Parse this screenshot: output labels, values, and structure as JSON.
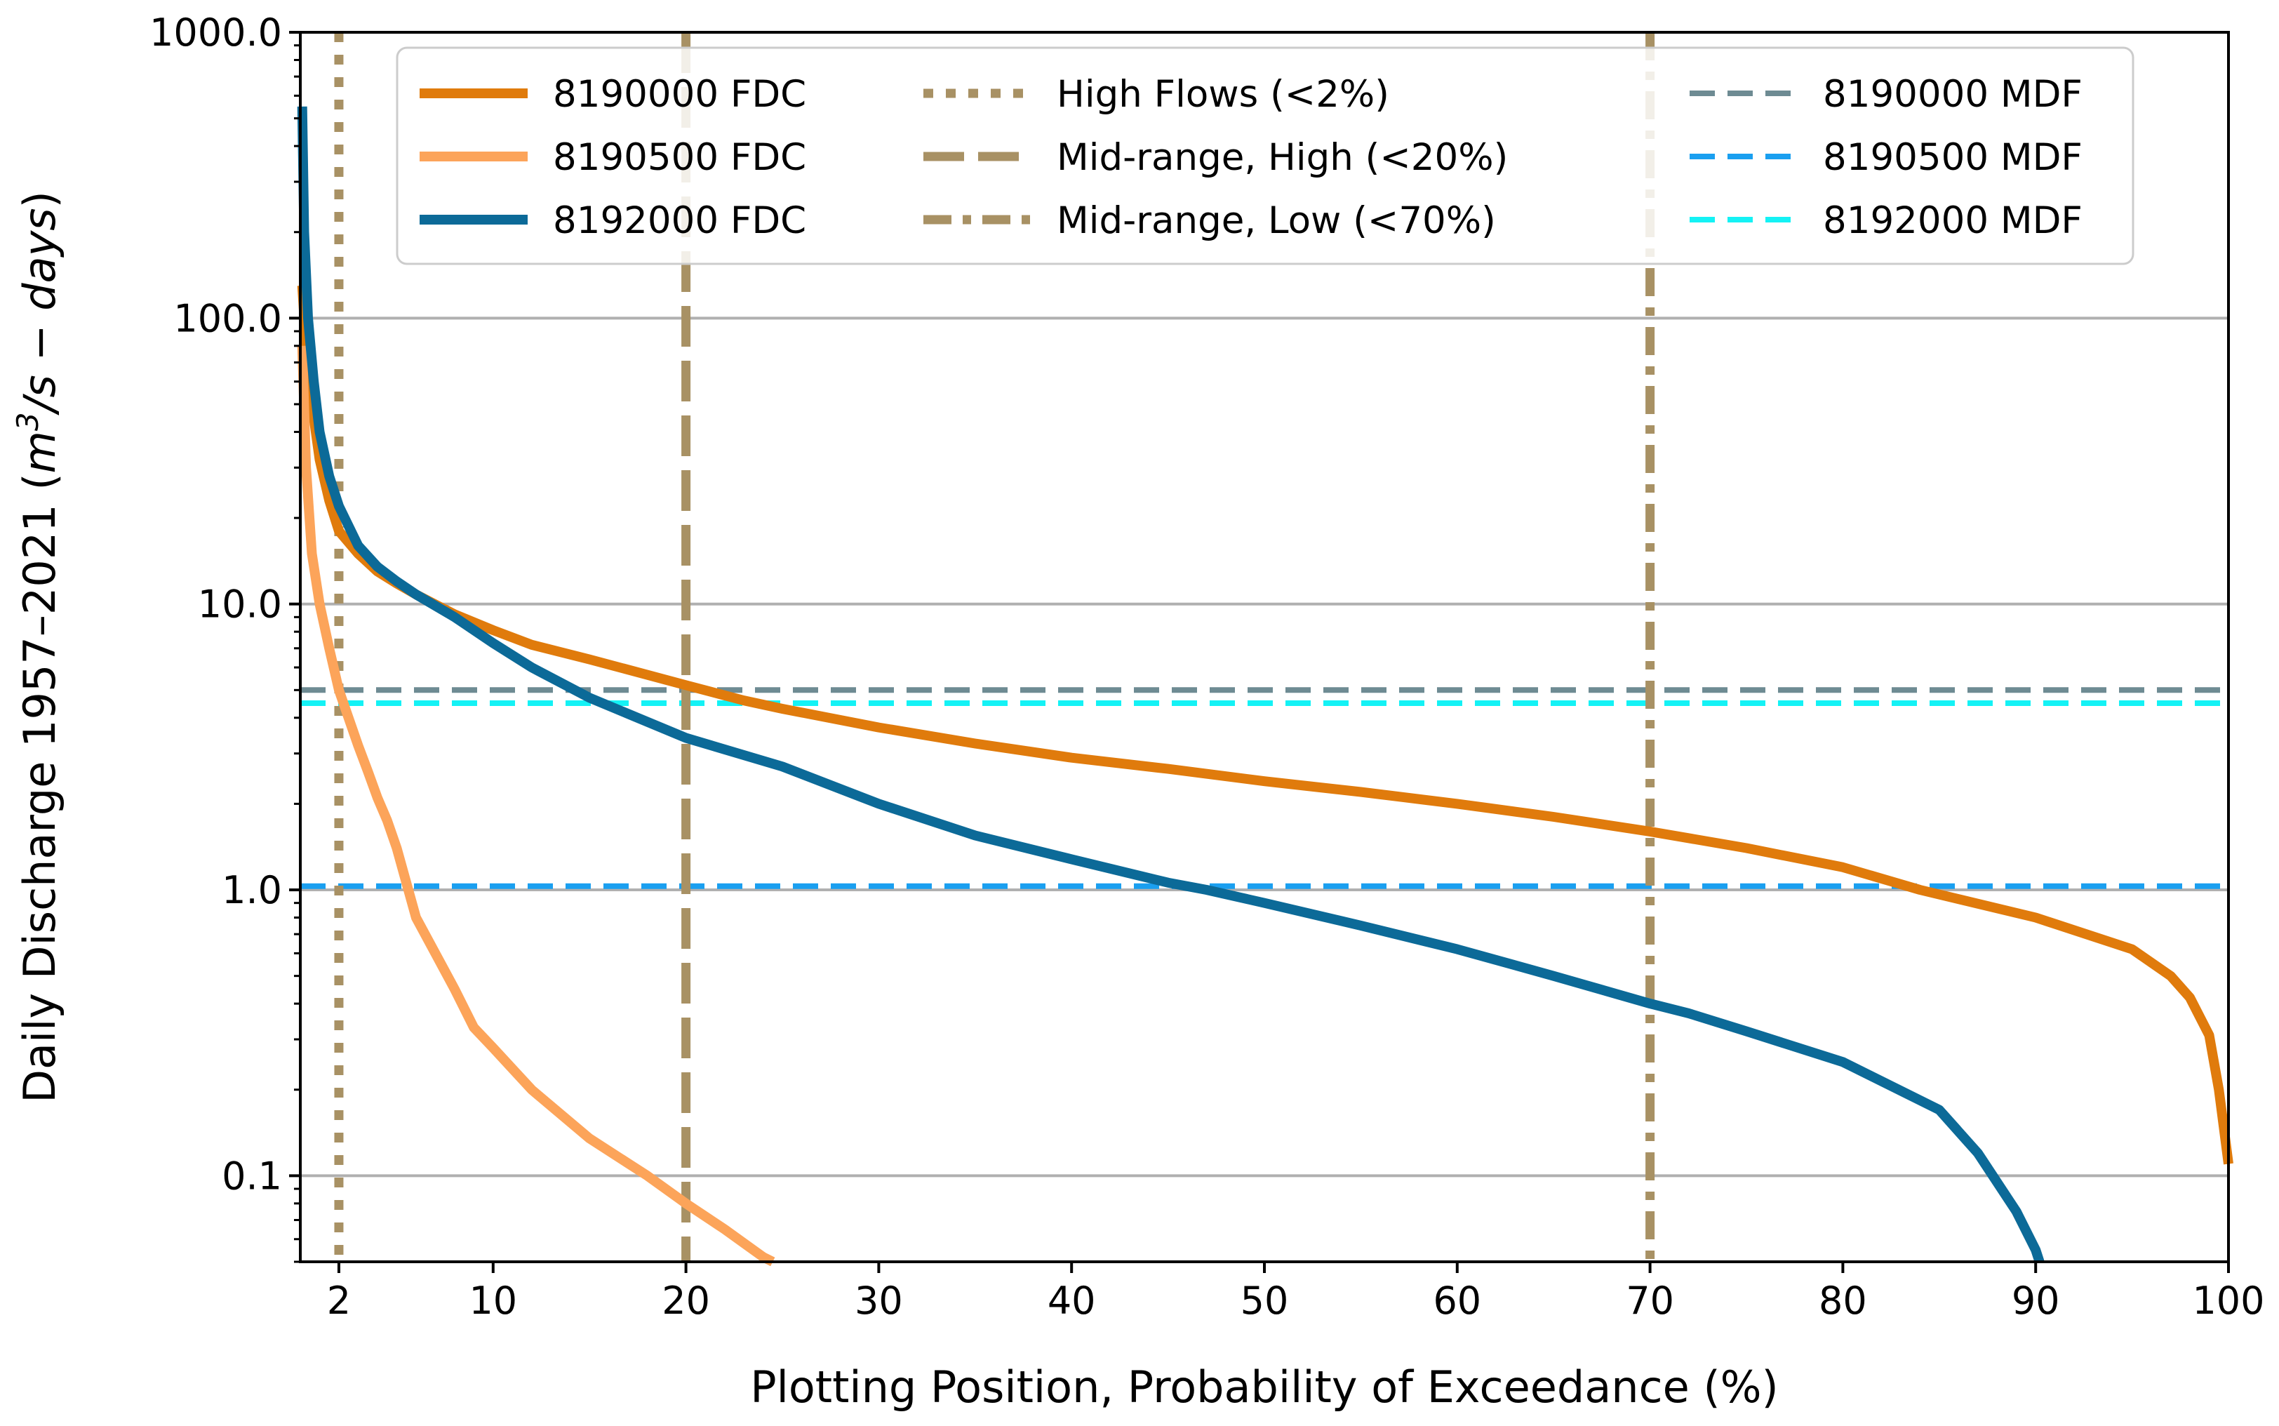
{
  "chart_data": {
    "type": "line",
    "title": "",
    "xlabel": "Plotting Position, Probability of Exceedance (%)",
    "ylabel_main": "Daily Discharge 1957–2021 (",
    "ylabel_m": "m",
    "ylabel_sup": "3",
    "ylabel_rest": "/s − days",
    "ylabel_close": ")",
    "yscale": "log",
    "xlim": [
      0,
      100
    ],
    "ylim": [
      0.05,
      1000
    ],
    "grid": "horizontal major only",
    "legend_position": "top-right",
    "x_ticks": [
      2,
      10,
      20,
      30,
      40,
      50,
      60,
      70,
      80,
      90,
      100
    ],
    "x_tick_labels": [
      "2",
      "10",
      "20",
      "30",
      "40",
      "50",
      "60",
      "70",
      "80",
      "90",
      "100"
    ],
    "y_ticks": [
      0.1,
      1,
      10,
      100,
      1000
    ],
    "y_tick_labels": [
      "0.1",
      "1.0",
      "10.0",
      "100.0",
      "1000.0"
    ],
    "series": [
      {
        "name": "8190000 FDC",
        "color": "#e07b0c",
        "style": "solid",
        "x": [
          0.1,
          0.3,
          0.6,
          1.0,
          1.5,
          2.0,
          3.0,
          4.0,
          5.0,
          6.0,
          8.0,
          10.0,
          12.0,
          15.0,
          20.0,
          23.0,
          25.0,
          30.0,
          35.0,
          40.0,
          45.0,
          50.0,
          55.0,
          60.0,
          65.0,
          70.0,
          75.0,
          80.0,
          84.0,
          90.0,
          95.0,
          97.0,
          98.0,
          99.0,
          99.5,
          99.8,
          100.0
        ],
        "y": [
          130,
          80,
          50,
          32,
          23,
          18,
          15,
          13,
          11.8,
          10.8,
          9.2,
          8.1,
          7.2,
          6.4,
          5.2,
          4.6,
          4.3,
          3.7,
          3.25,
          2.9,
          2.65,
          2.4,
          2.2,
          2.0,
          1.8,
          1.6,
          1.4,
          1.2,
          1.0,
          0.8,
          0.62,
          0.5,
          0.42,
          0.31,
          0.2,
          0.14,
          0.11
        ]
      },
      {
        "name": "8190500 FDC",
        "color": "#fca45a",
        "style": "solid",
        "x": [
          0.1,
          0.3,
          0.6,
          1.0,
          1.5,
          2.0,
          2.5,
          3.0,
          3.5,
          4.0,
          4.5,
          5.0,
          6.0,
          7.0,
          8.0,
          9.0,
          10.0,
          12.0,
          15.0,
          18.0,
          20.0,
          22.0,
          24.0,
          24.5
        ],
        "y": [
          80,
          30,
          15,
          10,
          7,
          5,
          4,
          3.2,
          2.6,
          2.1,
          1.75,
          1.4,
          0.8,
          0.6,
          0.45,
          0.33,
          0.28,
          0.2,
          0.135,
          0.1,
          0.08,
          0.065,
          0.052,
          0.048
        ]
      },
      {
        "name": "8192000 FDC",
        "color": "#0c6a98",
        "style": "solid",
        "x": [
          0.1,
          0.2,
          0.4,
          0.7,
          1.0,
          1.5,
          2.0,
          3.0,
          4.0,
          5.0,
          6.0,
          8.0,
          10.0,
          12.0,
          15.0,
          20.0,
          25.0,
          30.0,
          35.0,
          40.0,
          45.0,
          47.0,
          50.0,
          55.0,
          60.0,
          65.0,
          70.0,
          72.0,
          75.0,
          80.0,
          85.0,
          87.0,
          89.0,
          90.0,
          90.2
        ],
        "y": [
          550,
          200,
          100,
          60,
          40,
          28,
          22,
          16,
          13.5,
          12,
          10.8,
          9,
          7.3,
          6,
          4.7,
          3.4,
          2.7,
          2.0,
          1.55,
          1.28,
          1.06,
          1.0,
          0.9,
          0.75,
          0.62,
          0.5,
          0.4,
          0.37,
          0.32,
          0.25,
          0.17,
          0.12,
          0.075,
          0.055,
          0.05
        ]
      }
    ],
    "vlines": [
      {
        "name": "High Flows (<2%)",
        "x": 2,
        "color": "#a89164",
        "style": "dotted"
      },
      {
        "name": "Mid-range, High (<20%)",
        "x": 20,
        "color": "#a89164",
        "style": "dashed"
      },
      {
        "name": "Mid-range, Low (<70%)",
        "x": 70,
        "color": "#a89164",
        "style": "dashdot"
      }
    ],
    "hlines": [
      {
        "name": "8190000 MDF",
        "y": 5.0,
        "color": "#6e8b93",
        "style": "dashed"
      },
      {
        "name": "8190500 MDF",
        "y": 1.03,
        "color": "#1a9ff0",
        "style": "dashed"
      },
      {
        "name": "8192000 MDF",
        "y": 4.5,
        "color": "#14f2f5",
        "style": "dashed"
      }
    ],
    "legend": [
      [
        "8190000 FDC",
        "High Flows (<2%)",
        "8190000 MDF"
      ],
      [
        "8190500 FDC",
        "Mid-range, High (<20%)",
        "8190500 MDF"
      ],
      [
        "8192000 FDC",
        "Mid-range, Low (<70%)",
        "8192000 MDF"
      ]
    ]
  }
}
